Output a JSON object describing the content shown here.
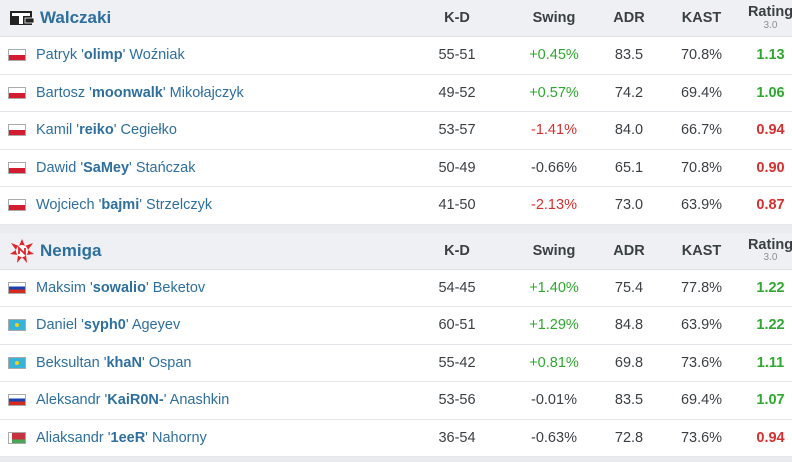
{
  "columns": {
    "kd": "K-D",
    "swing": "Swing",
    "adr": "ADR",
    "kast": "KAST",
    "rating": "Rating",
    "rating_version": "3.0"
  },
  "teams": [
    {
      "name": "Walczaki",
      "logo_icon": "walczaki-logo-icon",
      "players": [
        {
          "flag": "pl",
          "first": "Patryk '",
          "nick": "olimp",
          "last": "' Woźniak",
          "kd": "55-51",
          "swing": "+0.45%",
          "adr": "83.5",
          "kast": "70.8%",
          "rating": "1.13"
        },
        {
          "flag": "pl",
          "first": "Bartosz '",
          "nick": "moonwalk",
          "last": "' Mikołajczyk",
          "kd": "49-52",
          "swing": "+0.57%",
          "adr": "74.2",
          "kast": "69.4%",
          "rating": "1.06"
        },
        {
          "flag": "pl",
          "first": "Kamil '",
          "nick": "reiko",
          "last": "' Cegiełko",
          "kd": "53-57",
          "swing": "-1.41%",
          "adr": "84.0",
          "kast": "66.7%",
          "rating": "0.94"
        },
        {
          "flag": "pl",
          "first": "Dawid '",
          "nick": "SaMey",
          "last": "' Stańczak",
          "kd": "50-49",
          "swing": "-0.66%",
          "adr": "65.1",
          "kast": "70.8%",
          "rating": "0.90"
        },
        {
          "flag": "pl",
          "first": "Wojciech '",
          "nick": "bajmi",
          "last": "' Strzelczyk",
          "kd": "41-50",
          "swing": "-2.13%",
          "adr": "73.0",
          "kast": "63.9%",
          "rating": "0.87"
        }
      ]
    },
    {
      "name": "Nemiga",
      "logo_icon": "nemiga-logo-icon",
      "players": [
        {
          "flag": "ru",
          "first": "Maksim '",
          "nick": "sowalio",
          "last": "' Beketov",
          "kd": "54-45",
          "swing": "+1.40%",
          "adr": "75.4",
          "kast": "77.8%",
          "rating": "1.22"
        },
        {
          "flag": "kz",
          "first": "Daniel '",
          "nick": "syph0",
          "last": "' Ageyev",
          "kd": "60-51",
          "swing": "+1.29%",
          "adr": "84.8",
          "kast": "63.9%",
          "rating": "1.22"
        },
        {
          "flag": "kz",
          "first": "Beksultan '",
          "nick": "khaN",
          "last": "' Ospan",
          "kd": "55-42",
          "swing": "+0.81%",
          "adr": "69.8",
          "kast": "73.6%",
          "rating": "1.11"
        },
        {
          "flag": "ru",
          "first": "Aleksandr '",
          "nick": "KaiR0N-",
          "last": "' Anashkin",
          "kd": "53-56",
          "swing": "-0.01%",
          "adr": "83.5",
          "kast": "69.4%",
          "rating": "1.07"
        },
        {
          "flag": "by",
          "first": "Aliaksandr '",
          "nick": "1eeR",
          "last": "' Nahorny",
          "kd": "36-54",
          "swing": "-0.63%",
          "adr": "72.8",
          "kast": "73.6%",
          "rating": "0.94"
        }
      ]
    }
  ],
  "colors": {
    "positive": "#2ea82e",
    "negative": "#d3302f",
    "link": "#2e6f9e",
    "header_bg": "#eef0f3"
  }
}
